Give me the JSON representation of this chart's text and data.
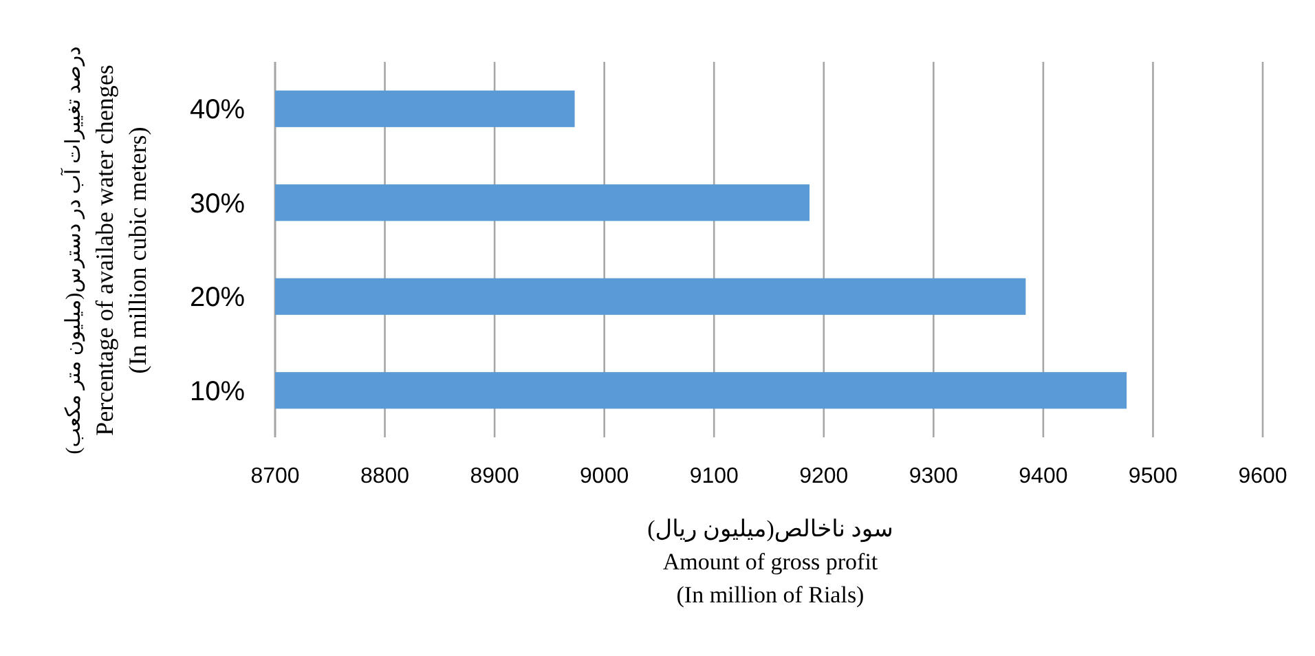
{
  "chart_data": {
    "type": "bar",
    "orientation": "horizontal",
    "categories": [
      "40%",
      "30%",
      "20%",
      "10%"
    ],
    "values": [
      8973,
      9187,
      9384,
      9476
    ],
    "color": "#5b9bd5",
    "xlim": [
      8700,
      9600
    ],
    "xticks": [
      8700,
      8800,
      8900,
      9000,
      9100,
      9200,
      9300,
      9400,
      9500,
      9600
    ],
    "grid": "x",
    "xlabel": "سود ناخالص(میلیون ریال)\nAmount of gross profit\n (In million of Rials)",
    "ylabel": "درصد تغییرات آب در دسترس(میلیون متر مکعب)\nPercentage of availabe water chenges\n(In million cubic meters)"
  }
}
